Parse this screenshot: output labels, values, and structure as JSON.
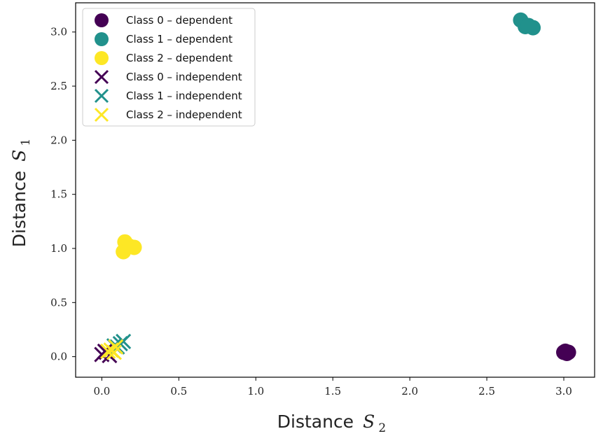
{
  "chart_data": {
    "type": "scatter",
    "xlabel": {
      "text": "Distance",
      "symbol": "S",
      "subscript": "2"
    },
    "ylabel": {
      "text": "Distance",
      "symbol": "S",
      "subscript": "1"
    },
    "xlim": [
      -0.17,
      3.2
    ],
    "ylim": [
      -0.19,
      3.27
    ],
    "xticks": [
      0.0,
      0.5,
      1.0,
      1.5,
      2.0,
      2.5,
      3.0
    ],
    "xtick_labels": [
      "0.0",
      "0.5",
      "1.0",
      "1.5",
      "2.0",
      "2.5",
      "3.0"
    ],
    "yticks": [
      0.0,
      0.5,
      1.0,
      1.5,
      2.0,
      2.5,
      3.0
    ],
    "ytick_labels": [
      "0.0",
      "0.5",
      "1.0",
      "1.5",
      "2.0",
      "2.5",
      "3.0"
    ],
    "grid": false,
    "legend_position": "top-left",
    "series": [
      {
        "name": "Class 0 – dependent",
        "marker": "circle",
        "color": "#440154",
        "points": [
          [
            3.0,
            0.04
          ],
          [
            3.02,
            0.03
          ],
          [
            3.03,
            0.04
          ],
          [
            3.01,
            0.05
          ]
        ]
      },
      {
        "name": "Class 1 – dependent",
        "marker": "circle",
        "color": "#21918c",
        "points": [
          [
            2.72,
            3.11
          ],
          [
            2.75,
            3.05
          ],
          [
            2.8,
            3.04
          ],
          [
            2.77,
            3.06
          ]
        ]
      },
      {
        "name": "Class 2 – dependent",
        "marker": "circle",
        "color": "#fde725",
        "points": [
          [
            0.15,
            1.06
          ],
          [
            0.21,
            1.01
          ],
          [
            0.14,
            0.97
          ],
          [
            0.18,
            1.02
          ]
        ]
      },
      {
        "name": "Class 0 – independent",
        "marker": "x",
        "color": "#440154",
        "points": [
          [
            0.0,
            0.02
          ],
          [
            0.03,
            0.04
          ],
          [
            0.05,
            0.01
          ],
          [
            0.02,
            0.05
          ]
        ]
      },
      {
        "name": "Class 1 – independent",
        "marker": "x",
        "color": "#21918c",
        "points": [
          [
            0.12,
            0.12
          ],
          [
            0.14,
            0.14
          ],
          [
            0.08,
            0.1
          ],
          [
            0.1,
            0.09
          ]
        ]
      },
      {
        "name": "Class 2 – independent",
        "marker": "x",
        "color": "#fde725",
        "points": [
          [
            0.06,
            0.06
          ],
          [
            0.09,
            0.09
          ],
          [
            0.04,
            0.05
          ],
          [
            0.08,
            0.04
          ]
        ]
      }
    ]
  }
}
